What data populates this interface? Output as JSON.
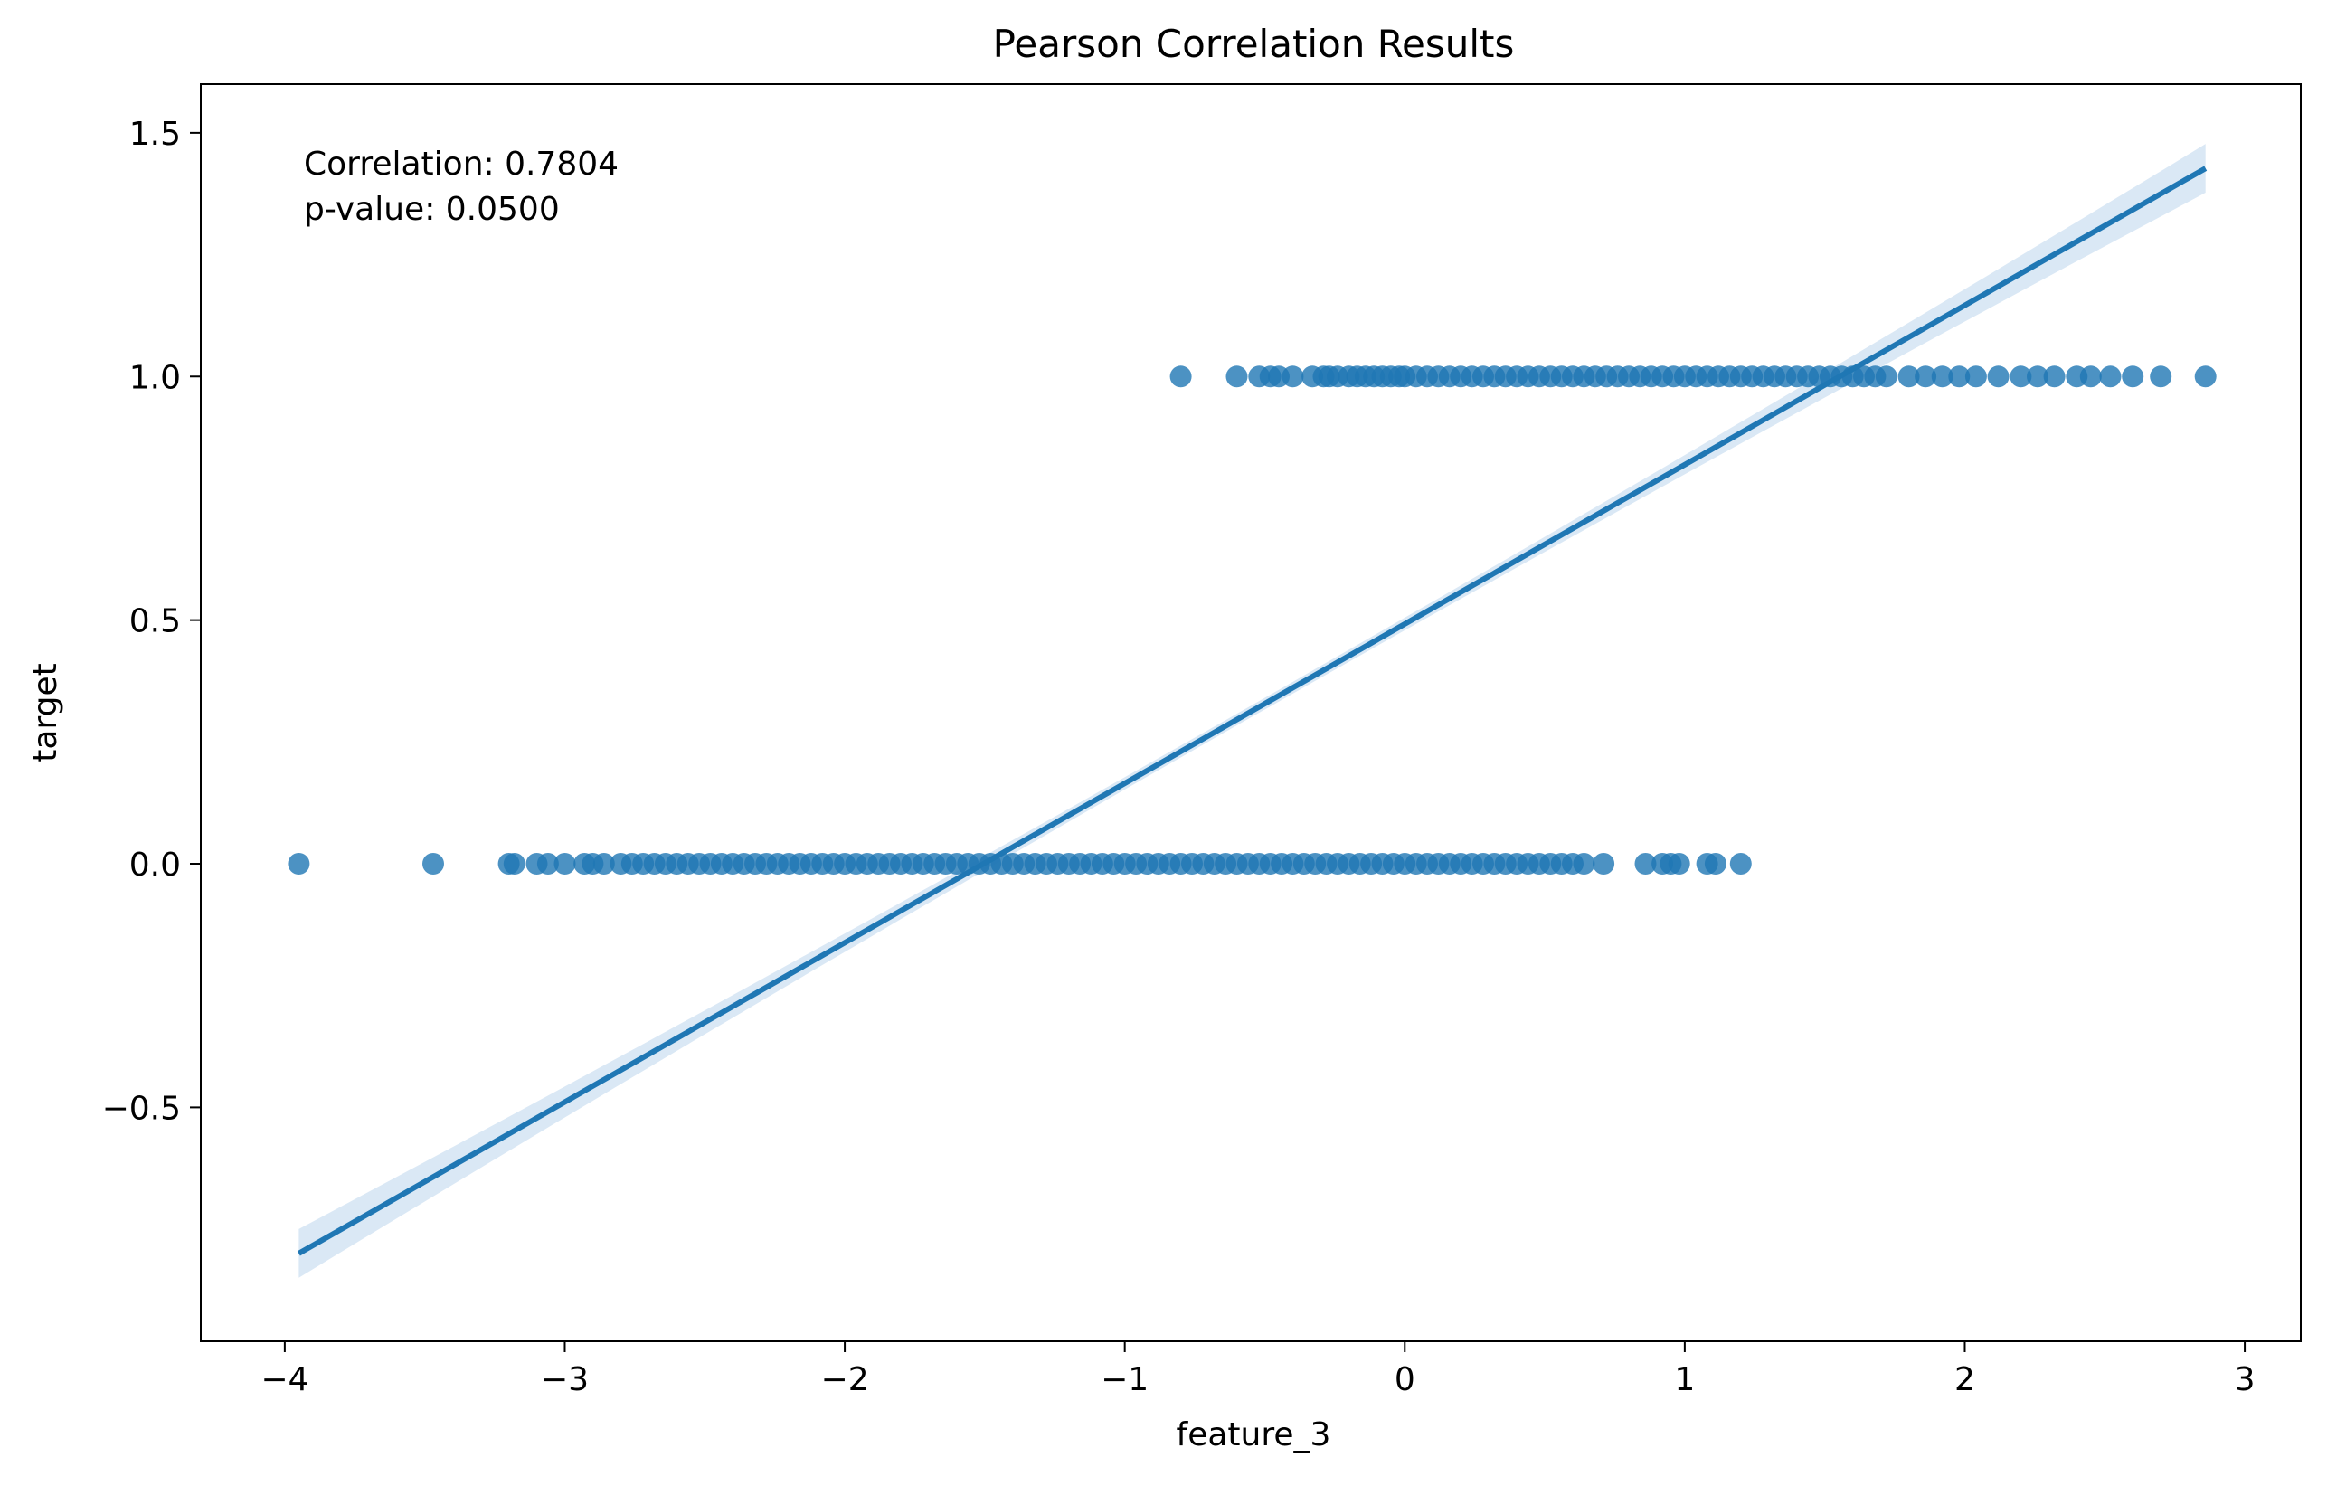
{
  "chart_data": {
    "type": "scatter",
    "title": "Pearson Correlation Results",
    "xlabel": "feature_3",
    "ylabel": "target",
    "xlim": [
      -4.3,
      3.2
    ],
    "ylim": [
      -0.98,
      1.6
    ],
    "x_ticks": [
      -4,
      -3,
      -2,
      -1,
      0,
      1,
      2,
      3
    ],
    "x_tick_labels": [
      "−4",
      "−3",
      "−2",
      "−1",
      "0",
      "1",
      "2",
      "3"
    ],
    "y_ticks": [
      -0.5,
      0.0,
      0.5,
      1.0,
      1.5
    ],
    "y_tick_labels": [
      "−0.5",
      "0.0",
      "0.5",
      "1.0",
      "1.5"
    ],
    "grid": false,
    "annotation": {
      "line1": "Correlation: 0.7804",
      "line2": "p-value: 0.0500"
    },
    "colors": {
      "points": "#1f77b4",
      "line": "#1f77b4",
      "band": "#c6dbef"
    },
    "series": [
      {
        "values_y": 1,
        "x": [
          -0.8,
          -0.6,
          -0.52,
          -0.48,
          -0.45,
          -0.4,
          -0.33,
          -0.29,
          -0.27,
          -0.24,
          -0.2,
          -0.17,
          -0.14,
          -0.11,
          -0.08,
          -0.05,
          -0.02,
          0.0,
          0.04,
          0.08,
          0.12,
          0.16,
          0.2,
          0.24,
          0.28,
          0.32,
          0.36,
          0.4,
          0.44,
          0.48,
          0.52,
          0.56,
          0.6,
          0.64,
          0.68,
          0.72,
          0.76,
          0.8,
          0.84,
          0.88,
          0.92,
          0.96,
          1.0,
          1.04,
          1.08,
          1.12,
          1.16,
          1.2,
          1.24,
          1.28,
          1.32,
          1.36,
          1.4,
          1.44,
          1.48,
          1.52,
          1.56,
          1.6,
          1.64,
          1.68,
          1.72,
          1.8,
          1.86,
          1.92,
          1.98,
          2.04,
          2.12,
          2.2,
          2.26,
          2.32,
          2.4,
          2.45,
          2.52,
          2.6,
          2.7,
          2.86
        ]
      },
      {
        "values_y": 0,
        "x": [
          -3.95,
          -3.47,
          -3.2,
          -3.18,
          -3.1,
          -3.06,
          -3.0,
          -2.93,
          -2.9,
          -2.86,
          -2.8,
          -2.76,
          -2.72,
          -2.68,
          -2.64,
          -2.6,
          -2.56,
          -2.52,
          -2.48,
          -2.44,
          -2.4,
          -2.36,
          -2.32,
          -2.28,
          -2.24,
          -2.2,
          -2.16,
          -2.12,
          -2.08,
          -2.04,
          -2.0,
          -1.96,
          -1.92,
          -1.88,
          -1.84,
          -1.8,
          -1.76,
          -1.72,
          -1.68,
          -1.64,
          -1.6,
          -1.56,
          -1.52,
          -1.48,
          -1.44,
          -1.4,
          -1.36,
          -1.32,
          -1.28,
          -1.24,
          -1.2,
          -1.16,
          -1.12,
          -1.08,
          -1.04,
          -1.0,
          -0.96,
          -0.92,
          -0.88,
          -0.84,
          -0.8,
          -0.76,
          -0.72,
          -0.68,
          -0.64,
          -0.6,
          -0.56,
          -0.52,
          -0.48,
          -0.44,
          -0.4,
          -0.36,
          -0.32,
          -0.28,
          -0.24,
          -0.2,
          -0.16,
          -0.12,
          -0.08,
          -0.04,
          0.0,
          0.04,
          0.08,
          0.12,
          0.16,
          0.2,
          0.24,
          0.28,
          0.32,
          0.36,
          0.4,
          0.44,
          0.48,
          0.52,
          0.56,
          0.6,
          0.64,
          0.71,
          0.86,
          0.92,
          0.95,
          0.98,
          1.08,
          1.11,
          1.2
        ]
      }
    ],
    "regression": {
      "x_range": [
        -3.95,
        2.86
      ],
      "slope": 0.327,
      "intercept": 0.492,
      "ci_half_width_ends": 0.05,
      "ci_half_width_center": 0.012
    }
  }
}
